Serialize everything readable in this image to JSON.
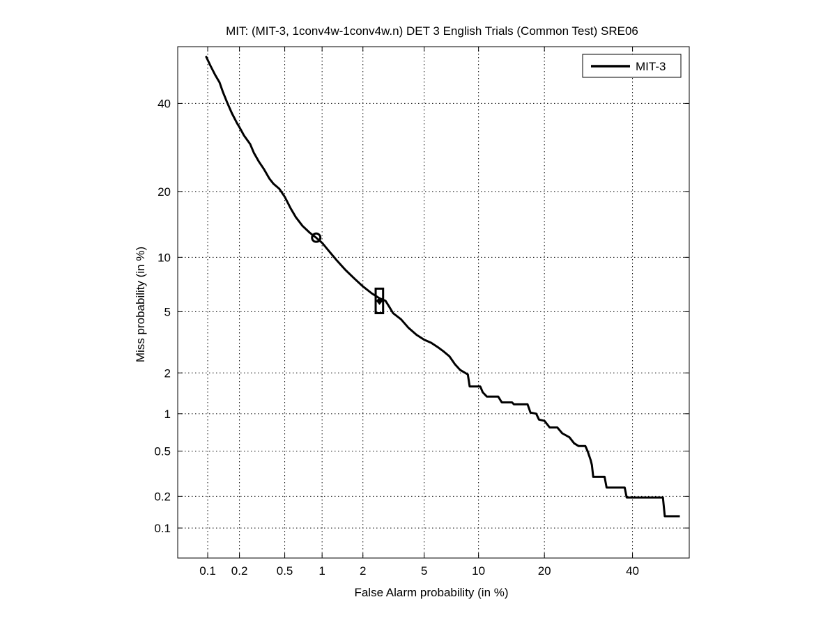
{
  "chart_data": {
    "type": "line",
    "scale": "normal-deviate (DET)",
    "title": "MIT: (MIT-3, 1conv4w-1conv4w.n) DET 3 English Trials (Common Test) SRE06",
    "xlabel": "False Alarm probability (in %)",
    "ylabel": "Miss probability (in %)",
    "xlim": [
      0.05,
      55
    ],
    "ylim": [
      0.05,
      55
    ],
    "grid": true,
    "legend": {
      "placement": "top-right",
      "entries": [
        "MIT-3"
      ]
    },
    "xticks": [
      0.1,
      0.2,
      0.5,
      1,
      2,
      5,
      10,
      20,
      40
    ],
    "xtick_labels": [
      "0.1",
      "0.2",
      "0.5",
      "1",
      "2",
      "5",
      "10",
      "20",
      "40"
    ],
    "yticks": [
      0.1,
      0.2,
      0.5,
      1,
      2,
      5,
      10,
      20,
      40
    ],
    "ytick_labels": [
      "0.1",
      "0.2",
      "0.5",
      "1",
      "2",
      "5",
      "10",
      "20",
      "40"
    ],
    "series": [
      {
        "name": "MIT-3",
        "color": "#000000",
        "points": [
          [
            0.096,
            52.5
          ],
          [
            0.106,
            50.0
          ],
          [
            0.118,
            47.5
          ],
          [
            0.13,
            45.5
          ],
          [
            0.14,
            43.0
          ],
          [
            0.155,
            40.0
          ],
          [
            0.17,
            37.5
          ],
          [
            0.19,
            35.0
          ],
          [
            0.2,
            34.0
          ],
          [
            0.22,
            32.0
          ],
          [
            0.25,
            30.0
          ],
          [
            0.27,
            28.0
          ],
          [
            0.3,
            26.0
          ],
          [
            0.33,
            24.5
          ],
          [
            0.37,
            22.5
          ],
          [
            0.4,
            21.5
          ],
          [
            0.45,
            20.5
          ],
          [
            0.5,
            19.0
          ],
          [
            0.56,
            17.0
          ],
          [
            0.62,
            15.5
          ],
          [
            0.7,
            14.2
          ],
          [
            0.8,
            13.2
          ],
          [
            0.9,
            12.5
          ],
          [
            1.0,
            11.8
          ],
          [
            1.15,
            10.6
          ],
          [
            1.3,
            9.6
          ],
          [
            1.5,
            8.6
          ],
          [
            1.75,
            7.7
          ],
          [
            2.0,
            7.0
          ],
          [
            2.3,
            6.4
          ],
          [
            2.6,
            6.0
          ],
          [
            2.85,
            5.8
          ],
          [
            3.0,
            5.4
          ],
          [
            3.2,
            4.9
          ],
          [
            3.6,
            4.5
          ],
          [
            4.0,
            4.0
          ],
          [
            4.5,
            3.6
          ],
          [
            5.0,
            3.35
          ],
          [
            5.5,
            3.2
          ],
          [
            6.0,
            3.0
          ],
          [
            6.5,
            2.8
          ],
          [
            7.0,
            2.6
          ],
          [
            7.5,
            2.3
          ],
          [
            8.0,
            2.1
          ],
          [
            8.8,
            1.95
          ],
          [
            9.0,
            1.6
          ],
          [
            10.2,
            1.6
          ],
          [
            10.5,
            1.45
          ],
          [
            11.0,
            1.35
          ],
          [
            12.5,
            1.35
          ],
          [
            13.0,
            1.22
          ],
          [
            14.5,
            1.22
          ],
          [
            14.8,
            1.18
          ],
          [
            17.0,
            1.18
          ],
          [
            17.5,
            1.02
          ],
          [
            18.5,
            1.0
          ],
          [
            19.0,
            0.9
          ],
          [
            20.0,
            0.88
          ],
          [
            21.0,
            0.78
          ],
          [
            22.5,
            0.78
          ],
          [
            23.5,
            0.7
          ],
          [
            25.0,
            0.65
          ],
          [
            26.0,
            0.58
          ],
          [
            27.0,
            0.55
          ],
          [
            28.5,
            0.55
          ],
          [
            29.0,
            0.5
          ],
          [
            29.7,
            0.42
          ],
          [
            30.0,
            0.38
          ],
          [
            30.3,
            0.3
          ],
          [
            33.0,
            0.3
          ],
          [
            33.5,
            0.24
          ],
          [
            38.0,
            0.24
          ],
          [
            38.5,
            0.195
          ],
          [
            48.0,
            0.195
          ],
          [
            48.5,
            0.13
          ],
          [
            52.5,
            0.13
          ]
        ],
        "markers": [
          {
            "label": "circle",
            "x": 0.9,
            "y": 12.5
          },
          {
            "label": "box",
            "x_range": [
              2.45,
              2.75
            ],
            "y_range": [
              4.9,
              6.8
            ]
          },
          {
            "label": "diamond",
            "x": 2.6,
            "y": 5.8
          }
        ]
      }
    ]
  }
}
